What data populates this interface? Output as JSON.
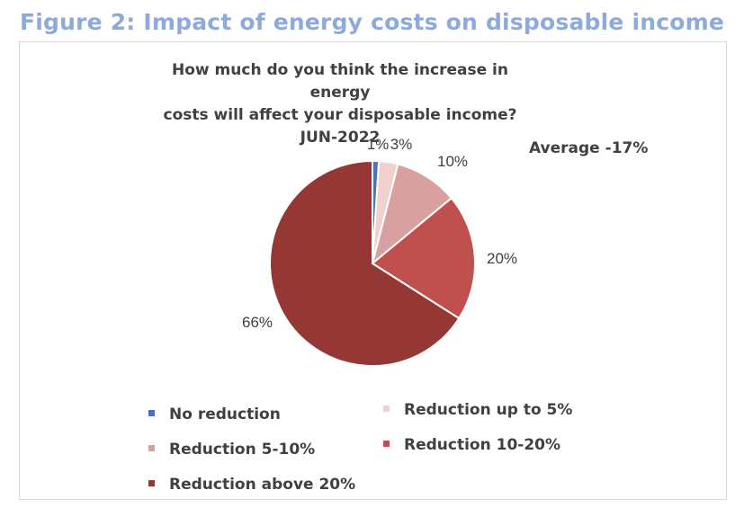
{
  "figure_title": "Figure 2: Impact of energy costs on disposable income",
  "chart_data": {
    "type": "pie",
    "title_lines": [
      "How much do you think the increase in energy",
      "costs will affect your disposable income?",
      "JUN-2022"
    ],
    "annotation": "Average -17%",
    "categories": [
      "No reduction",
      "Reduction up to 5%",
      "Reduction 5-10%",
      "Reduction 10-20%",
      "Reduction above 20%"
    ],
    "values": [
      1,
      3,
      10,
      20,
      66
    ],
    "labels": [
      "1%",
      "3%",
      "10%",
      "20%",
      "66%"
    ],
    "colors": [
      "#4472c4",
      "#f2d0d0",
      "#d9a0a0",
      "#c0504d",
      "#953735"
    ],
    "legend_position": "bottom"
  }
}
